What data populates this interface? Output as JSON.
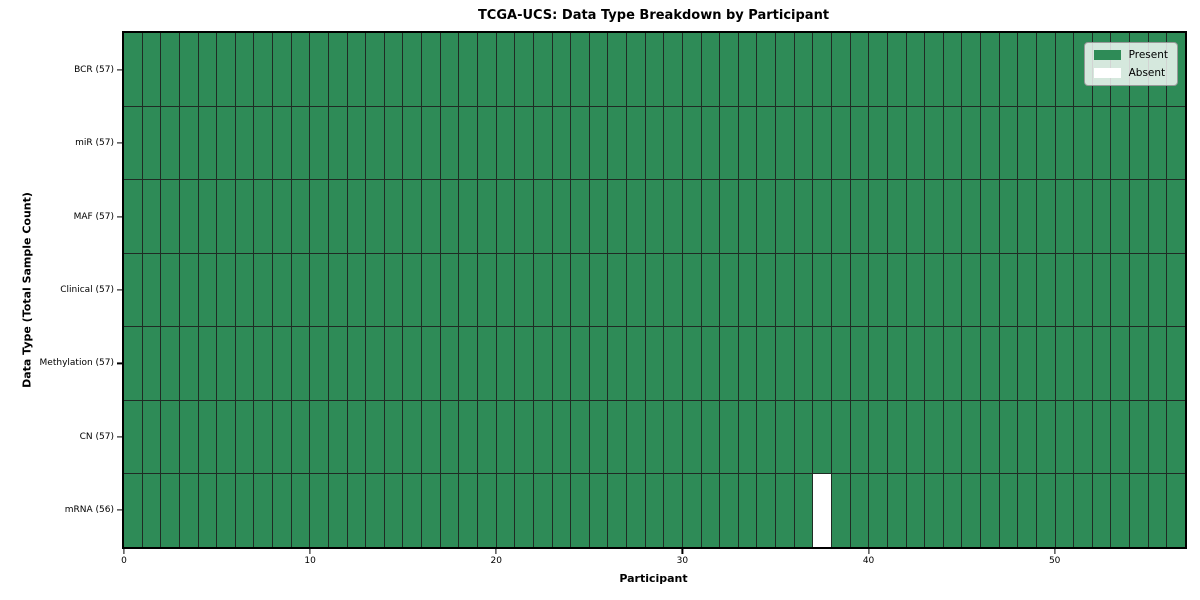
{
  "chart_data": {
    "type": "heatmap",
    "title": "TCGA-UCS: Data Type Breakdown by Participant",
    "xlabel": "Participant",
    "ylabel": "Data Type (Total Sample Count)",
    "n_participants": 57,
    "xlim": [
      0,
      57
    ],
    "x_ticks": [
      0,
      10,
      20,
      30,
      40,
      50
    ],
    "rows": [
      {
        "label": "BCR (57)",
        "data_type": "BCR",
        "count": 57,
        "absent_indices": []
      },
      {
        "label": "miR (57)",
        "data_type": "miR",
        "count": 57,
        "absent_indices": []
      },
      {
        "label": "MAF (57)",
        "data_type": "MAF",
        "count": 57,
        "absent_indices": []
      },
      {
        "label": "Clinical (57)",
        "data_type": "Clinical",
        "count": 57,
        "absent_indices": []
      },
      {
        "label": "Methylation (57)",
        "data_type": "Methylation",
        "count": 57,
        "absent_indices": []
      },
      {
        "label": "CN (57)",
        "data_type": "CN",
        "count": 57,
        "absent_indices": []
      },
      {
        "label": "mRNA (56)",
        "data_type": "mRNA",
        "count": 56,
        "absent_indices": [
          37
        ]
      }
    ],
    "colors": {
      "present": "#2e8b57",
      "absent": "#ffffff",
      "grid_line": "#1f2b24",
      "spine": "#000000"
    },
    "legend": {
      "position": "upper right",
      "entries": [
        {
          "label": "Present",
          "color": "#2e8b57"
        },
        {
          "label": "Absent",
          "color": "#ffffff"
        }
      ]
    }
  }
}
